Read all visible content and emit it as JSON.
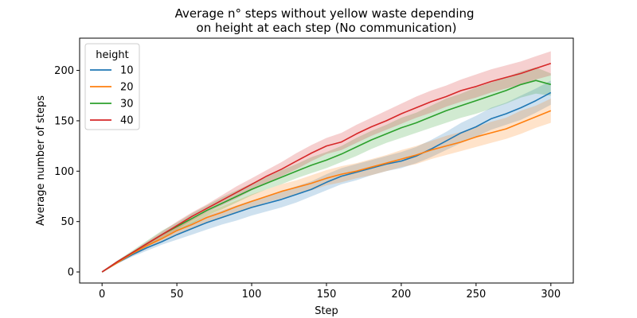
{
  "chart_data": {
    "type": "line",
    "title": "Average n° steps without yellow waste depending\non height at each step (No communication)",
    "xlabel": "Step",
    "ylabel": "Average number of steps",
    "xlim": [
      -15,
      315
    ],
    "ylim": [
      -11,
      232
    ],
    "xticks": [
      0,
      50,
      100,
      150,
      200,
      250,
      300
    ],
    "yticks": [
      0,
      50,
      100,
      150,
      200
    ],
    "grid": false,
    "legend": {
      "title": "height",
      "placement": "top-left"
    },
    "series": [
      {
        "name": "10",
        "color": "#1f77b4",
        "x": [
          0,
          10,
          20,
          30,
          40,
          50,
          60,
          70,
          80,
          90,
          100,
          110,
          120,
          130,
          140,
          150,
          160,
          170,
          180,
          190,
          200,
          210,
          220,
          230,
          240,
          250,
          260,
          270,
          280,
          290,
          300
        ],
        "y": [
          0,
          9,
          17,
          24,
          30,
          37,
          43,
          49,
          54,
          59,
          64,
          68,
          72,
          77,
          82,
          89,
          95,
          99,
          103,
          107,
          110,
          115,
          122,
          130,
          138,
          144,
          152,
          157,
          163,
          170,
          178
        ],
        "lower": [
          0,
          8,
          15,
          21,
          27,
          32,
          37,
          42,
          47,
          51,
          56,
          60,
          64,
          69,
          75,
          81,
          87,
          91,
          96,
          100,
          103,
          108,
          114,
          121,
          128,
          134,
          141,
          146,
          151,
          158,
          166
        ],
        "upper": [
          0,
          10,
          19,
          27,
          34,
          42,
          49,
          56,
          61,
          66,
          71,
          75,
          80,
          85,
          90,
          97,
          103,
          107,
          111,
          115,
          119,
          124,
          131,
          139,
          148,
          155,
          163,
          168,
          175,
          182,
          190
        ]
      },
      {
        "name": "20",
        "color": "#ff7f0e",
        "x": [
          0,
          10,
          20,
          30,
          40,
          50,
          60,
          70,
          80,
          90,
          100,
          110,
          120,
          130,
          140,
          150,
          160,
          170,
          180,
          190,
          200,
          210,
          220,
          230,
          240,
          250,
          260,
          270,
          280,
          290,
          300
        ],
        "y": [
          0,
          9,
          18,
          26,
          33,
          41,
          47,
          54,
          59,
          65,
          70,
          75,
          80,
          84,
          88,
          93,
          97,
          100,
          104,
          108,
          112,
          116,
          121,
          125,
          129,
          134,
          138,
          142,
          148,
          154,
          160
        ],
        "lower": [
          0,
          8,
          16,
          23,
          30,
          37,
          43,
          49,
          54,
          59,
          64,
          69,
          73,
          77,
          81,
          86,
          89,
          93,
          96,
          100,
          104,
          107,
          112,
          116,
          120,
          124,
          128,
          132,
          137,
          143,
          148
        ],
        "upper": [
          0,
          10,
          20,
          29,
          37,
          45,
          52,
          59,
          65,
          71,
          77,
          82,
          87,
          91,
          96,
          101,
          105,
          108,
          112,
          116,
          121,
          125,
          130,
          135,
          139,
          144,
          149,
          153,
          160,
          165,
          172
        ]
      },
      {
        "name": "30",
        "color": "#2ca02c",
        "x": [
          0,
          10,
          20,
          30,
          40,
          50,
          60,
          70,
          80,
          90,
          100,
          110,
          120,
          130,
          140,
          150,
          160,
          170,
          180,
          190,
          200,
          210,
          220,
          230,
          240,
          250,
          260,
          270,
          280,
          290,
          300
        ],
        "y": [
          0,
          10,
          19,
          28,
          37,
          45,
          53,
          61,
          68,
          75,
          82,
          88,
          94,
          100,
          106,
          111,
          117,
          124,
          131,
          137,
          143,
          148,
          154,
          160,
          165,
          170,
          175,
          180,
          186,
          190,
          186
        ],
        "lower": [
          0,
          9,
          17,
          25,
          33,
          41,
          48,
          56,
          62,
          69,
          76,
          82,
          87,
          93,
          98,
          103,
          109,
          115,
          122,
          128,
          133,
          138,
          143,
          148,
          153,
          157,
          162,
          167,
          173,
          177,
          175
        ],
        "upper": [
          0,
          11,
          21,
          31,
          41,
          49,
          58,
          66,
          74,
          81,
          88,
          94,
          101,
          107,
          114,
          119,
          125,
          133,
          140,
          146,
          153,
          158,
          165,
          172,
          177,
          183,
          188,
          193,
          199,
          203,
          197
        ]
      },
      {
        "name": "40",
        "color": "#d62728",
        "x": [
          0,
          10,
          20,
          30,
          40,
          50,
          60,
          70,
          80,
          90,
          100,
          110,
          120,
          130,
          140,
          150,
          160,
          170,
          180,
          190,
          200,
          210,
          220,
          230,
          240,
          250,
          260,
          270,
          280,
          290,
          300
        ],
        "y": [
          0,
          10,
          19,
          28,
          37,
          46,
          55,
          63,
          71,
          79,
          87,
          95,
          102,
          110,
          118,
          125,
          129,
          137,
          144,
          150,
          157,
          163,
          169,
          174,
          180,
          184,
          189,
          193,
          197,
          202,
          207
        ],
        "lower": [
          0,
          9,
          18,
          26,
          34,
          42,
          51,
          59,
          66,
          73,
          81,
          88,
          95,
          102,
          110,
          117,
          121,
          128,
          135,
          141,
          147,
          153,
          158,
          164,
          169,
          173,
          178,
          182,
          186,
          191,
          195
        ],
        "upper": [
          0,
          11,
          20,
          30,
          40,
          50,
          59,
          67,
          76,
          85,
          93,
          101,
          109,
          118,
          126,
          133,
          138,
          146,
          153,
          160,
          167,
          174,
          180,
          185,
          191,
          196,
          201,
          205,
          209,
          214,
          219
        ]
      }
    ]
  }
}
